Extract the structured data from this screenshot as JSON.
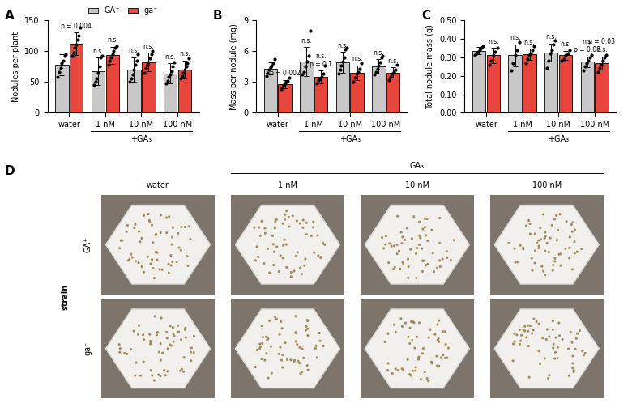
{
  "chart_data": [
    {
      "type": "bar",
      "panel": "A",
      "ylabel": "Nodules per plant",
      "categories": [
        "water",
        "1 nM",
        "10 nM",
        "100 nM"
      ],
      "category_group": {
        "label": "+GA₃",
        "categories": [
          "1 nM",
          "10 nM",
          "100 nM"
        ]
      },
      "ylim": [
        0,
        150
      ],
      "yticks": [
        0,
        50,
        100,
        150
      ],
      "legend": "upper center",
      "series": [
        {
          "name": "GA⁺",
          "color": "#c8c8c8",
          "values": [
            78,
            67,
            70,
            64
          ],
          "errors": [
            17,
            22,
            20,
            16
          ],
          "points": [
            [
              58,
              66,
              72,
              80,
              84,
              92,
              95
            ],
            [
              45,
              50,
              55,
              65,
              75,
              90,
              92
            ],
            [
              50,
              55,
              62,
              70,
              78,
              85,
              95
            ],
            [
              48,
              52,
              58,
              62,
              68,
              75,
              82
            ]
          ],
          "annotations": [
            [],
            [
              "n.s."
            ],
            [
              "n.s."
            ],
            [
              "n.s."
            ]
          ]
        },
        {
          "name": "ga⁻",
          "color": "#e8453c",
          "values": [
            112,
            93,
            82,
            70
          ],
          "errors": [
            18,
            14,
            15,
            15
          ],
          "points": [
            [
              92,
              98,
              105,
              110,
              118,
              125,
              138
            ],
            [
              78,
              85,
              90,
              95,
              100,
              105,
              108
            ],
            [
              65,
              72,
              78,
              82,
              88,
              95,
              100
            ],
            [
              55,
              60,
              65,
              70,
              75,
              80,
              88
            ]
          ],
          "annotations": [
            [
              "p = 0.004"
            ],
            [
              "n.s."
            ],
            [
              "n.s."
            ],
            [
              "n.s."
            ]
          ]
        }
      ]
    },
    {
      "type": "bar",
      "panel": "B",
      "ylabel": "Mass per nodule (mg)",
      "categories": [
        "water",
        "1 nM",
        "10 nM",
        "100 nM"
      ],
      "category_group": {
        "label": "+GA₃",
        "categories": [
          "1 nM",
          "10 nM",
          "100 nM"
        ]
      },
      "ylim": [
        0,
        9
      ],
      "yticks": [
        0,
        3,
        6,
        9
      ],
      "series": [
        {
          "name": "GA⁺",
          "color": "#c8c8c8",
          "values": [
            4.3,
            5.0,
            4.9,
            4.5
          ],
          "errors": [
            0.6,
            1.4,
            1.0,
            0.7
          ],
          "points": [
            [
              3.6,
              3.9,
              4.2,
              4.4,
              4.6,
              4.8,
              5.2
            ],
            [
              3.7,
              4.0,
              4.5,
              5.0,
              5.5,
              8.0
            ],
            [
              3.8,
              4.2,
              4.6,
              5.0,
              5.4,
              6.2,
              6.3
            ],
            [
              3.7,
              4.0,
              4.3,
              4.6,
              4.9,
              5.4,
              5.5
            ]
          ],
          "annotations": [
            [],
            [
              "n.s."
            ],
            [
              "n.s."
            ],
            [
              "n.s."
            ]
          ]
        },
        {
          "name": "ga⁻",
          "color": "#e8453c",
          "values": [
            2.8,
            3.5,
            3.9,
            3.9
          ],
          "errors": [
            0.4,
            0.6,
            0.7,
            0.5
          ],
          "points": [
            [
              2.2,
              2.5,
              2.7,
              2.9,
              3.0,
              3.1,
              3.4
            ],
            [
              2.9,
              3.2,
              3.3,
              3.5,
              3.8,
              4.6
            ],
            [
              3.0,
              3.4,
              3.8,
              4.0,
              4.3,
              4.8
            ],
            [
              3.2,
              3.5,
              3.8,
              4.0,
              4.2,
              4.7
            ]
          ],
          "annotations": [
            [
              "p = 0.002"
            ],
            [
              "p = 0.1",
              "n.s."
            ],
            [
              "n.s."
            ],
            [
              "n.s."
            ]
          ]
        }
      ]
    },
    {
      "type": "bar",
      "panel": "C",
      "ylabel": "Total nodule mass (g)",
      "categories": [
        "water",
        "1 nM",
        "10 nM",
        "100 nM"
      ],
      "category_group": {
        "label": "+GA₃",
        "categories": [
          "1 nM",
          "10 nM",
          "100 nM"
        ]
      },
      "ylim": [
        0,
        0.5
      ],
      "yticks": [
        {
          "value": 0,
          "label": "0.00"
        },
        {
          "value": 0.1,
          "label": "0.10"
        },
        {
          "value": 0.2,
          "label": "0.20"
        },
        {
          "value": 0.3,
          "label": "0.30"
        },
        {
          "value": 0.4,
          "label": "0.40"
        },
        {
          "value": 0.5,
          "label": "0.50"
        }
      ],
      "series": [
        {
          "name": "GA⁺",
          "color": "#c8c8c8",
          "values": [
            0.335,
            0.31,
            0.325,
            0.275
          ],
          "errors": [
            0.02,
            0.06,
            0.05,
            0.03
          ],
          "points": [
            [
              0.31,
              0.32,
              0.33,
              0.34,
              0.35,
              0.36
            ],
            [
              0.23,
              0.27,
              0.31,
              0.34,
              0.38
            ],
            [
              0.24,
              0.28,
              0.32,
              0.34,
              0.37,
              0.39
            ],
            [
              0.23,
              0.25,
              0.27,
              0.28,
              0.3,
              0.31
            ]
          ],
          "annotations": [
            [],
            [
              "n.s."
            ],
            [
              "n.s."
            ],
            [
              "p = 0.08",
              "n.s."
            ]
          ]
        },
        {
          "name": "ga⁻",
          "color": "#e8453c",
          "values": [
            0.31,
            0.315,
            0.31,
            0.27
          ],
          "errors": [
            0.04,
            0.03,
            0.025,
            0.035
          ],
          "points": [
            [
              0.26,
              0.28,
              0.31,
              0.33,
              0.35
            ],
            [
              0.27,
              0.29,
              0.31,
              0.32,
              0.34,
              0.36
            ],
            [
              0.28,
              0.29,
              0.31,
              0.32,
              0.34
            ],
            [
              0.22,
              0.24,
              0.26,
              0.28,
              0.3,
              0.31
            ]
          ],
          "annotations": [
            [
              "n.s."
            ],
            [
              "n.s."
            ],
            [
              "n.s."
            ],
            [
              "n.s.",
              "p = 0.03"
            ]
          ]
        }
      ]
    }
  ],
  "panel_d": {
    "panel": "D",
    "header": "GA₃",
    "columns": [
      "water",
      "1 nM",
      "10 nM",
      "100 nM"
    ],
    "rows": [
      "GA⁺",
      "ga⁻"
    ],
    "row_title": "strain"
  }
}
